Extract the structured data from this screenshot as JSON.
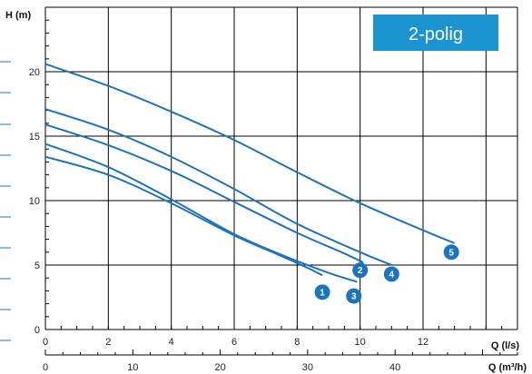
{
  "chart_data": {
    "type": "line",
    "title": "2-polig",
    "ylabel": "H (m)",
    "xlabel": "Q (l/s)",
    "xlabel2": "Q (m³/h)",
    "xlim": [
      0,
      15
    ],
    "ylim": [
      0,
      25
    ],
    "x2lim": [
      0,
      54
    ],
    "xticks": [
      "0",
      "2",
      "4",
      "6",
      "8",
      "10",
      "12"
    ],
    "x2ticks": [
      "0",
      "10",
      "20",
      "30",
      "40"
    ],
    "yticks": [
      "0",
      "5",
      "10",
      "15",
      "20"
    ],
    "grid": true,
    "series": [
      {
        "name": "1",
        "x": [
          0,
          2,
          4,
          6,
          7.5,
          8.4,
          8.8
        ],
        "y": [
          13.4,
          12.0,
          9.8,
          7.3,
          5.7,
          4.7,
          4.2
        ]
      },
      {
        "name": "2",
        "x": [
          0,
          2,
          4,
          6,
          8,
          9.5,
          10.1
        ],
        "y": [
          15.9,
          14.3,
          12.3,
          9.9,
          7.5,
          5.9,
          5.2
        ]
      },
      {
        "name": "3",
        "x": [
          0,
          2,
          4,
          6,
          7.5,
          9,
          9.9
        ],
        "y": [
          14.4,
          12.6,
          10.1,
          7.4,
          5.8,
          4.4,
          3.7
        ]
      },
      {
        "name": "4",
        "x": [
          0,
          2,
          4,
          6,
          8,
          10,
          11
        ],
        "y": [
          17.1,
          15.5,
          13.4,
          10.9,
          8.2,
          6.0,
          5.0
        ]
      },
      {
        "name": "5",
        "x": [
          0,
          2,
          4,
          6,
          8,
          10,
          12,
          13
        ],
        "y": [
          20.6,
          18.9,
          16.9,
          14.7,
          12.2,
          9.8,
          7.7,
          6.7
        ]
      }
    ]
  },
  "colors": {
    "curve": "#1b74bd",
    "badge": "#1b74bd",
    "tagbox": "#1a93cf",
    "grid": "#000000"
  }
}
